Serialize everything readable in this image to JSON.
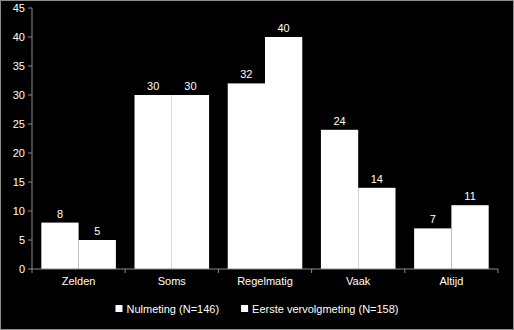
{
  "chart_data": {
    "type": "bar",
    "categories": [
      "Zelden",
      "Soms",
      "Regelmatig",
      "Vaak",
      "Altijd"
    ],
    "series": [
      {
        "name": "Nulmeting (N=146)",
        "color": "#ffffff",
        "values": [
          8,
          30,
          32,
          24,
          7
        ]
      },
      {
        "name": "Eerste vervolgmeting (N=158)",
        "color": "#ffffff",
        "values": [
          5,
          30,
          40,
          14,
          11
        ]
      }
    ],
    "ylim": [
      0,
      45
    ],
    "yticks": [
      0,
      5,
      10,
      15,
      20,
      25,
      30,
      35,
      40,
      45
    ],
    "grid": false,
    "legend": "bottom",
    "data_labels": true
  }
}
